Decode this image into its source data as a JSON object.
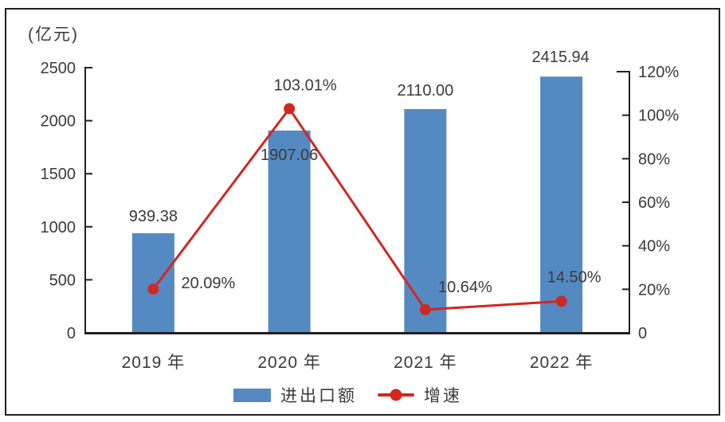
{
  "unit_label": "(亿元)",
  "chart_data": {
    "type": "combo",
    "title": "",
    "categories": [
      "2019 年",
      "2020 年",
      "2021 年",
      "2022 年"
    ],
    "series": [
      {
        "name": "进出口额",
        "type": "bar",
        "axis": "left",
        "values": [
          939.38,
          1907.06,
          2110.0,
          2415.94
        ],
        "labels": [
          "939.38",
          "1907.06",
          "2110.00",
          "2415.94"
        ],
        "color": "#5589c2"
      },
      {
        "name": "增速",
        "type": "line",
        "axis": "right",
        "values": [
          20.09,
          103.01,
          10.64,
          14.5
        ],
        "labels": [
          "20.09%",
          "103.01%",
          "10.64%",
          "14.50%"
        ],
        "color": "#cf2823"
      }
    ],
    "left_axis": {
      "unit": "亿元",
      "min": 0,
      "max": 2500,
      "ticks": [
        "0",
        "500",
        "1000",
        "1500",
        "2000",
        "2500"
      ]
    },
    "right_axis": {
      "min": 0,
      "max": 120,
      "ticks": [
        "0",
        "20%",
        "40%",
        "60%",
        "80%",
        "100%",
        "120%"
      ]
    },
    "legend": [
      "进出口额",
      "增速"
    ],
    "legend_position": "bottom",
    "grid": false,
    "axis_color": "#231f20",
    "text_color": "#3a3a3a"
  }
}
